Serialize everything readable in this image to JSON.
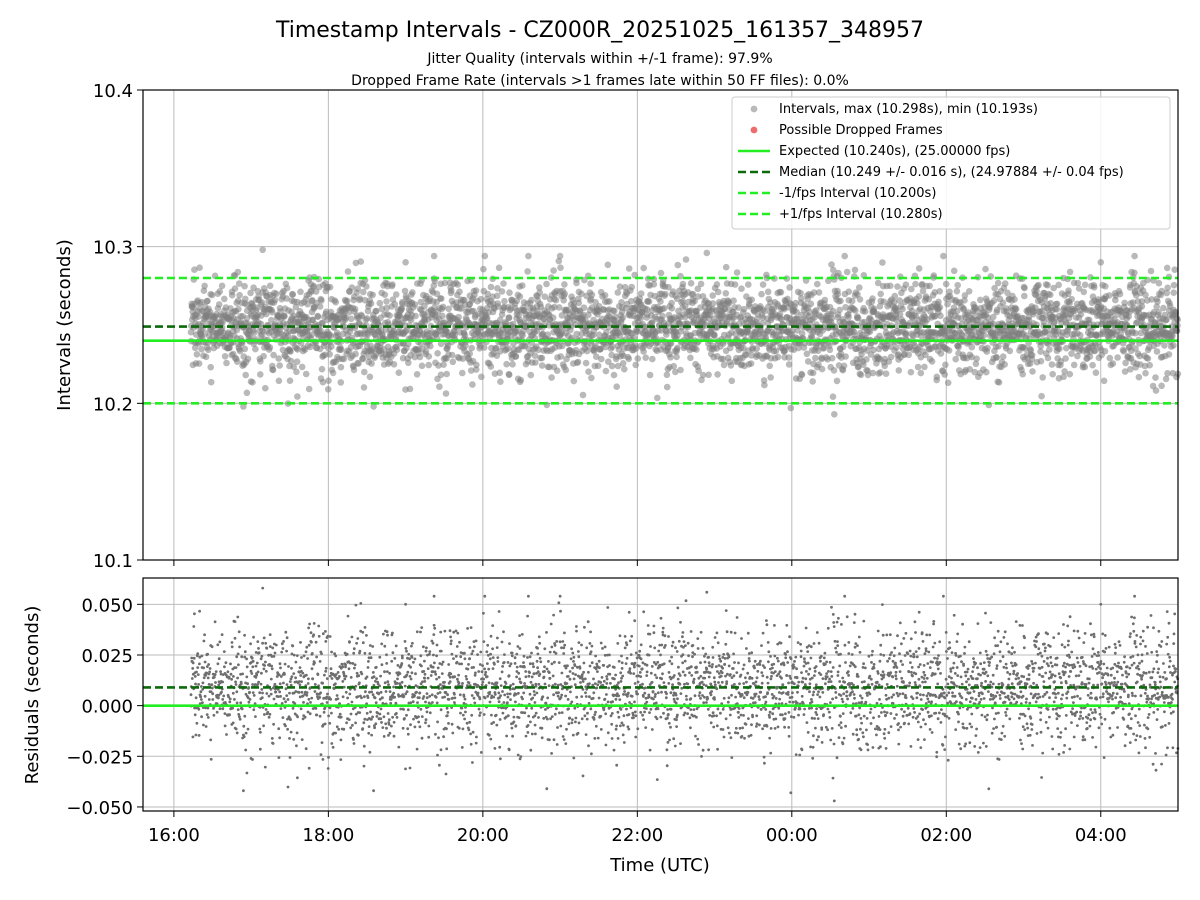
{
  "figure": {
    "title": "Timestamp Intervals - CZ000R_20251025_161357_348957",
    "subtitle_1": "Jitter Quality (intervals within +/-1 frame): 97.9%",
    "subtitle_2": "Dropped Frame Rate (intervals >1 frames late within 50 FF files): 0.0%"
  },
  "colors": {
    "points": "#808080",
    "dropped": "#e8494a",
    "expected": "#22ee22",
    "median": "#0b6b0b",
    "fps_bounds": "#22ee22",
    "grid": "#bbbbbb"
  },
  "chart_data": [
    {
      "type": "scatter",
      "panel": "intervals",
      "ylabel": "Intervals (seconds)",
      "xlabel": "",
      "x_unit": "hours since 16:00 UTC",
      "xlim": [
        -0.4,
        13.0
      ],
      "ylim": [
        10.1,
        10.4
      ],
      "y_ticks": [
        "10.1",
        "10.2",
        "10.3",
        "10.4"
      ],
      "x_ticks": [
        {
          "value": 0,
          "label": "16:00"
        },
        {
          "value": 2,
          "label": "18:00"
        },
        {
          "value": 4,
          "label": "20:00"
        },
        {
          "value": 6,
          "label": "22:00"
        },
        {
          "value": 8,
          "label": "00:00"
        },
        {
          "value": 10,
          "label": "02:00"
        },
        {
          "value": 12,
          "label": "04:00"
        }
      ],
      "grid": true,
      "data_start": 0.22,
      "point_count": 4000,
      "interval_stats": {
        "median": 10.249,
        "std": 0.016,
        "min": 10.193,
        "max": 10.298
      },
      "extreme_points": [
        {
          "x": 1.15,
          "y": 10.298
        },
        {
          "x": 8.55,
          "y": 10.193
        },
        {
          "x": 0.9,
          "y": 10.198
        },
        {
          "x": 5.0,
          "y": 10.294
        },
        {
          "x": 6.9,
          "y": 10.296
        },
        {
          "x": 12.0,
          "y": 10.29
        },
        {
          "x": 3.0,
          "y": 10.29
        }
      ],
      "reference_lines": [
        {
          "name": "expected",
          "y": 10.24,
          "style": "solid"
        },
        {
          "name": "median",
          "y": 10.249,
          "style": "dashed"
        },
        {
          "name": "minus_fps",
          "y": 10.2,
          "style": "dashed"
        },
        {
          "name": "plus_fps",
          "y": 10.28,
          "style": "dashed"
        }
      ],
      "legend": {
        "placement": "top-right",
        "entries": [
          {
            "marker": "dot-gray",
            "label": "Intervals, max (10.298s), min (10.193s)"
          },
          {
            "marker": "dot-red",
            "label": "Possible Dropped Frames"
          },
          {
            "marker": "line-expected",
            "label": "Expected (10.240s), (25.00000 fps)"
          },
          {
            "marker": "line-median",
            "label": "Median (10.249 +/- 0.016 s), (24.97884 +/- 0.04 fps)"
          },
          {
            "marker": "line-minus",
            "label": "-1/fps Interval (10.200s)"
          },
          {
            "marker": "line-plus",
            "label": "+1/fps Interval (10.280s)"
          }
        ]
      }
    },
    {
      "type": "scatter",
      "panel": "residuals",
      "ylabel": "Residuals (seconds)",
      "xlabel": "Time (UTC)",
      "xlim": [
        -0.4,
        13.0
      ],
      "ylim": [
        -0.052,
        0.063
      ],
      "y_ticks": [
        {
          "value": 0.05,
          "label": "0.050"
        },
        {
          "value": 0.025,
          "label": "0.025"
        },
        {
          "value": 0.0,
          "label": "0.000"
        },
        {
          "value": -0.025,
          "label": "−0.025"
        },
        {
          "value": -0.05,
          "label": "−0.050"
        }
      ],
      "grid": true,
      "reference_lines": [
        {
          "name": "zero",
          "y": 0.0,
          "style": "solid"
        },
        {
          "name": "median_offset",
          "y": 0.009,
          "style": "dashed"
        }
      ],
      "residual_range": {
        "min": -0.047,
        "max": 0.058
      }
    }
  ]
}
